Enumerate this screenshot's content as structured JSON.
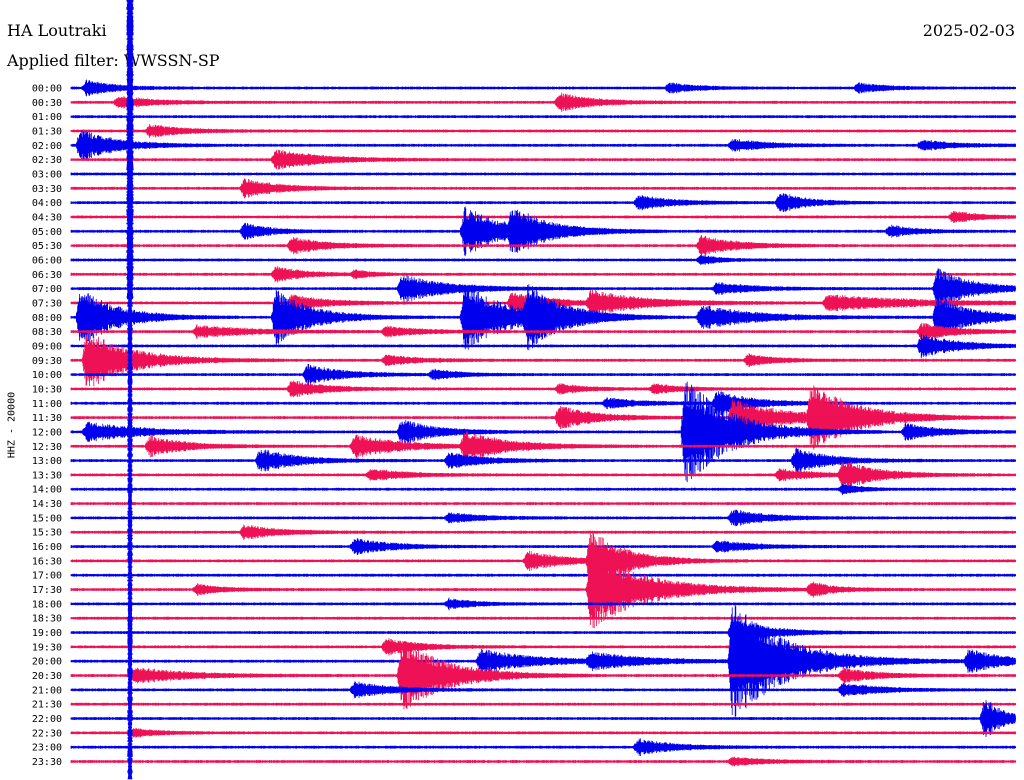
{
  "header": {
    "station": "HA Loutraki",
    "date": "2025-02-03",
    "filter_label": "Applied filter: WWSSN-SP"
  },
  "colors": {
    "trace_a": "#0000ee",
    "trace_b": "#ee1155",
    "background": "#ffffff",
    "text": "#000000"
  },
  "chart_data": {
    "type": "line",
    "title": "HA Loutraki",
    "ylabel": "HHZ - 20000",
    "row_labels": [
      "00:00",
      "00:30",
      "01:00",
      "01:30",
      "02:00",
      "02:30",
      "03:00",
      "03:30",
      "04:00",
      "04:30",
      "05:00",
      "05:30",
      "06:00",
      "06:30",
      "07:00",
      "07:30",
      "08:00",
      "08:30",
      "09:00",
      "09:30",
      "10:00",
      "10:30",
      "11:00",
      "11:30",
      "12:00",
      "12:30",
      "13:00",
      "13:30",
      "14:00",
      "14:30",
      "15:00",
      "15:30",
      "16:00",
      "16:30",
      "17:00",
      "17:30",
      "18:00",
      "18:30",
      "19:00",
      "19:30",
      "20:00",
      "20:30",
      "21:00",
      "21:30",
      "22:00",
      "22:30",
      "23:00",
      "23:30"
    ],
    "row_colors": [
      "blue",
      "red"
    ],
    "minutes_per_row": 30,
    "noise_level": 1.5,
    "events": [
      {
        "row": 0,
        "min": 0.5,
        "amp": 8,
        "dur": 1.5
      },
      {
        "row": 0,
        "min": 19,
        "amp": 5,
        "dur": 1.5
      },
      {
        "row": 0,
        "min": 25,
        "amp": 5,
        "dur": 1.5
      },
      {
        "row": 1,
        "min": 1.5,
        "amp": 6,
        "dur": 2
      },
      {
        "row": 1,
        "min": 15.5,
        "amp": 9,
        "dur": 2
      },
      {
        "row": 3,
        "min": 2.5,
        "amp": 6,
        "dur": 2
      },
      {
        "row": 4,
        "min": 0.3,
        "amp": 16,
        "dur": 2
      },
      {
        "row": 4,
        "min": 21,
        "amp": 6,
        "dur": 2
      },
      {
        "row": 4,
        "min": 27,
        "amp": 5,
        "dur": 2
      },
      {
        "row": 5,
        "min": 6.5,
        "amp": 10,
        "dur": 2.5
      },
      {
        "row": 7,
        "min": 5.5,
        "amp": 9,
        "dur": 2
      },
      {
        "row": 8,
        "min": 18,
        "amp": 7,
        "dur": 2
      },
      {
        "row": 8,
        "min": 22.5,
        "amp": 10,
        "dur": 1.5
      },
      {
        "row": 9,
        "min": 28,
        "amp": 6,
        "dur": 1.5
      },
      {
        "row": 10,
        "min": 12.5,
        "amp": 24,
        "dur": 2.5
      },
      {
        "row": 10,
        "min": 14,
        "amp": 18,
        "dur": 2
      },
      {
        "row": 10,
        "min": 5.5,
        "amp": 8,
        "dur": 1.5
      },
      {
        "row": 10,
        "min": 26,
        "amp": 6,
        "dur": 1.5
      },
      {
        "row": 11,
        "min": 7,
        "amp": 8,
        "dur": 2
      },
      {
        "row": 11,
        "min": 20,
        "amp": 10,
        "dur": 2
      },
      {
        "row": 12,
        "min": 20,
        "amp": 5,
        "dur": 1
      },
      {
        "row": 13,
        "min": 6.5,
        "amp": 8,
        "dur": 1.5
      },
      {
        "row": 13,
        "min": 9,
        "amp": 4,
        "dur": 1
      },
      {
        "row": 14,
        "min": 10.5,
        "amp": 14,
        "dur": 2.5
      },
      {
        "row": 14,
        "min": 20.5,
        "amp": 6,
        "dur": 2
      },
      {
        "row": 14,
        "min": 27.5,
        "amp": 20,
        "dur": 2
      },
      {
        "row": 15,
        "min": 7,
        "amp": 8,
        "dur": 2
      },
      {
        "row": 15,
        "min": 14,
        "amp": 12,
        "dur": 2
      },
      {
        "row": 15,
        "min": 16.5,
        "amp": 12,
        "dur": 3
      },
      {
        "row": 15,
        "min": 24,
        "amp": 8,
        "dur": 5
      },
      {
        "row": 16,
        "min": 0.3,
        "amp": 30,
        "dur": 2
      },
      {
        "row": 16,
        "min": 6.5,
        "amp": 28,
        "dur": 2
      },
      {
        "row": 16,
        "min": 12.5,
        "amp": 34,
        "dur": 2.5
      },
      {
        "row": 16,
        "min": 14.5,
        "amp": 28,
        "dur": 2
      },
      {
        "row": 16,
        "min": 20,
        "amp": 12,
        "dur": 3
      },
      {
        "row": 16,
        "min": 27.5,
        "amp": 22,
        "dur": 2
      },
      {
        "row": 17,
        "min": 4,
        "amp": 6,
        "dur": 3
      },
      {
        "row": 17,
        "min": 10,
        "amp": 5,
        "dur": 2
      },
      {
        "row": 17,
        "min": 27,
        "amp": 8,
        "dur": 2
      },
      {
        "row": 18,
        "min": 27,
        "amp": 12,
        "dur": 2
      },
      {
        "row": 19,
        "min": 0.5,
        "amp": 30,
        "dur": 2.5
      },
      {
        "row": 19,
        "min": 10,
        "amp": 5,
        "dur": 2
      },
      {
        "row": 19,
        "min": 21.5,
        "amp": 6,
        "dur": 1.5
      },
      {
        "row": 20,
        "min": 7.5,
        "amp": 10,
        "dur": 2
      },
      {
        "row": 20,
        "min": 11.5,
        "amp": 5,
        "dur": 1.5
      },
      {
        "row": 21,
        "min": 7,
        "amp": 8,
        "dur": 2
      },
      {
        "row": 21,
        "min": 15.5,
        "amp": 5,
        "dur": 1.5
      },
      {
        "row": 21,
        "min": 18.5,
        "amp": 5,
        "dur": 1.5
      },
      {
        "row": 22,
        "min": 17,
        "amp": 5,
        "dur": 2
      },
      {
        "row": 22,
        "min": 20.5,
        "amp": 12,
        "dur": 2
      },
      {
        "row": 23,
        "min": 15.5,
        "amp": 12,
        "dur": 2
      },
      {
        "row": 23,
        "min": 21,
        "amp": 18,
        "dur": 3
      },
      {
        "row": 23,
        "min": 23.5,
        "amp": 32,
        "dur": 2.5
      },
      {
        "row": 24,
        "min": 0.5,
        "amp": 10,
        "dur": 3
      },
      {
        "row": 24,
        "min": 10.5,
        "amp": 12,
        "dur": 2
      },
      {
        "row": 24,
        "min": 19.5,
        "amp": 55,
        "dur": 2.5
      },
      {
        "row": 24,
        "min": 26.5,
        "amp": 8,
        "dur": 2
      },
      {
        "row": 25,
        "min": 2.5,
        "amp": 10,
        "dur": 2
      },
      {
        "row": 25,
        "min": 9,
        "amp": 12,
        "dur": 2.5
      },
      {
        "row": 25,
        "min": 12.5,
        "amp": 14,
        "dur": 2.5
      },
      {
        "row": 26,
        "min": 6,
        "amp": 12,
        "dur": 2
      },
      {
        "row": 26,
        "min": 12,
        "amp": 8,
        "dur": 2
      },
      {
        "row": 26,
        "min": 23,
        "amp": 12,
        "dur": 2
      },
      {
        "row": 27,
        "min": 9.5,
        "amp": 6,
        "dur": 2
      },
      {
        "row": 27,
        "min": 22.5,
        "amp": 6,
        "dur": 2
      },
      {
        "row": 27,
        "min": 24.5,
        "amp": 14,
        "dur": 2
      },
      {
        "row": 28,
        "min": 24.5,
        "amp": 5,
        "dur": 1
      },
      {
        "row": 30,
        "min": 12,
        "amp": 5,
        "dur": 2
      },
      {
        "row": 30,
        "min": 21,
        "amp": 8,
        "dur": 2
      },
      {
        "row": 31,
        "min": 5.5,
        "amp": 7,
        "dur": 2
      },
      {
        "row": 32,
        "min": 9,
        "amp": 8,
        "dur": 2
      },
      {
        "row": 32,
        "min": 20.5,
        "amp": 6,
        "dur": 2
      },
      {
        "row": 33,
        "min": 14.5,
        "amp": 10,
        "dur": 2
      },
      {
        "row": 33,
        "min": 16.5,
        "amp": 30,
        "dur": 2
      },
      {
        "row": 35,
        "min": 16.5,
        "amp": 40,
        "dur": 3
      },
      {
        "row": 35,
        "min": 4,
        "amp": 5,
        "dur": 1.5
      },
      {
        "row": 35,
        "min": 23.5,
        "amp": 7,
        "dur": 1.5
      },
      {
        "row": 36,
        "min": 12,
        "amp": 5,
        "dur": 1.5
      },
      {
        "row": 38,
        "min": 21,
        "amp": 14,
        "dur": 2
      },
      {
        "row": 39,
        "min": 10,
        "amp": 8,
        "dur": 2
      },
      {
        "row": 40,
        "min": 13,
        "amp": 12,
        "dur": 3
      },
      {
        "row": 40,
        "min": 16.5,
        "amp": 8,
        "dur": 3
      },
      {
        "row": 40,
        "min": 21,
        "amp": 60,
        "dur": 3
      },
      {
        "row": 40,
        "min": 28.5,
        "amp": 12,
        "dur": 2
      },
      {
        "row": 41,
        "min": 2,
        "amp": 8,
        "dur": 3
      },
      {
        "row": 41,
        "min": 10.5,
        "amp": 38,
        "dur": 2.5
      },
      {
        "row": 41,
        "min": 24.5,
        "amp": 7,
        "dur": 2
      },
      {
        "row": 42,
        "min": 9,
        "amp": 8,
        "dur": 2
      },
      {
        "row": 42,
        "min": 24.5,
        "amp": 7,
        "dur": 2
      },
      {
        "row": 44,
        "min": 29,
        "amp": 22,
        "dur": 1
      },
      {
        "row": 45,
        "min": 2,
        "amp": 4,
        "dur": 1.5
      },
      {
        "row": 46,
        "min": 18,
        "amp": 8,
        "dur": 2
      },
      {
        "row": 47,
        "min": 21,
        "amp": 4,
        "dur": 2
      }
    ]
  }
}
